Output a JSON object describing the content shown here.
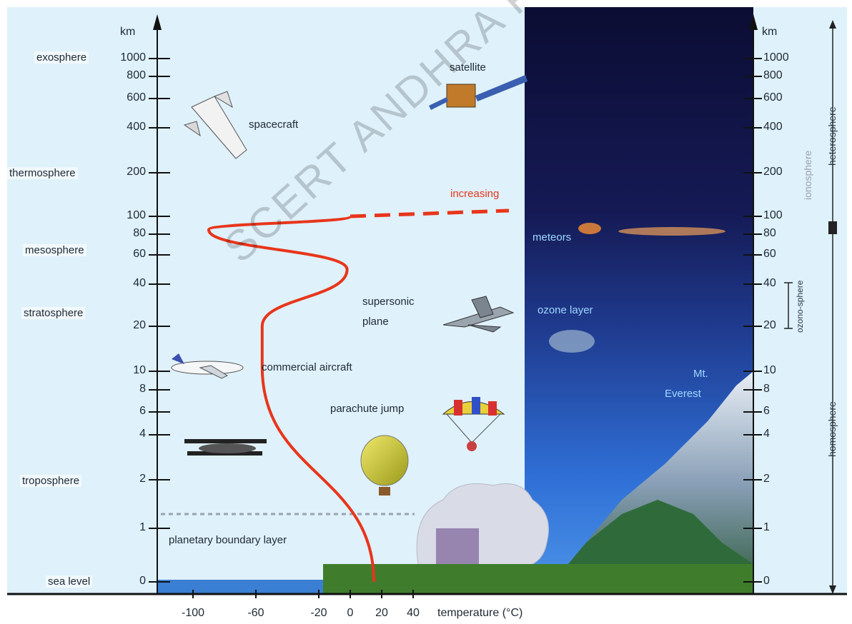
{
  "axis": {
    "unit_left": "km",
    "unit_right": "km",
    "temperature_label": "temperature (°C)",
    "altitude_ticks": [
      "1000",
      "800",
      "600",
      "400",
      "200",
      "100",
      "80",
      "60",
      "40",
      "20",
      "10",
      "8",
      "6",
      "4",
      "2",
      "1",
      "0"
    ],
    "altitude_values": [
      1000,
      800,
      600,
      400,
      200,
      100,
      80,
      60,
      40,
      20,
      10,
      8,
      6,
      4,
      2,
      1,
      0
    ],
    "temperature_ticks": [
      "-100",
      "-60",
      "-20",
      "0",
      "20",
      "40"
    ],
    "temperature_values": [
      -100,
      -60,
      -20,
      0,
      20,
      40
    ]
  },
  "layers": {
    "exosphere": "exosphere",
    "thermosphere": "thermosphere",
    "mesosphere": "mesosphere",
    "stratosphere": "stratosphere",
    "troposphere": "troposphere",
    "sea_level": "sea level",
    "boundary": "planetary boundary layer"
  },
  "objects": {
    "satellite": "satellite",
    "spacecraft": "spacecraft",
    "increasing": "increasing",
    "meteors": "meteors",
    "supersonic_line1": "supersonic",
    "supersonic_line2": "plane",
    "ozone": "ozone layer",
    "commercial": "commercial aircraft",
    "everest_line1": "Mt.",
    "everest_line2": "Everest",
    "parachute": "parachute jump"
  },
  "spheres": {
    "heterosphere": "heterosphere",
    "ionosphere": "ionosphere",
    "ozonosphere": "ozono-sphere",
    "homosphere": "homosphere"
  },
  "watermark": "SCERT ANDHRA PRADESH",
  "colors": {
    "sky_light": "#dff1fb",
    "space_dark": "#0c1038",
    "sky_blue": "#2f6fd6",
    "temperature_curve": "#e8351b",
    "ground_blue": "#3a7fd4",
    "grass": "#3f7d2c"
  },
  "temperature_profile": {
    "points": [
      [
        15,
        0
      ],
      [
        -56,
        11
      ],
      [
        -56,
        20
      ],
      [
        -2,
        50
      ],
      [
        -90,
        85
      ],
      [
        0,
        100
      ]
    ],
    "above_100_km": "increasing"
  }
}
